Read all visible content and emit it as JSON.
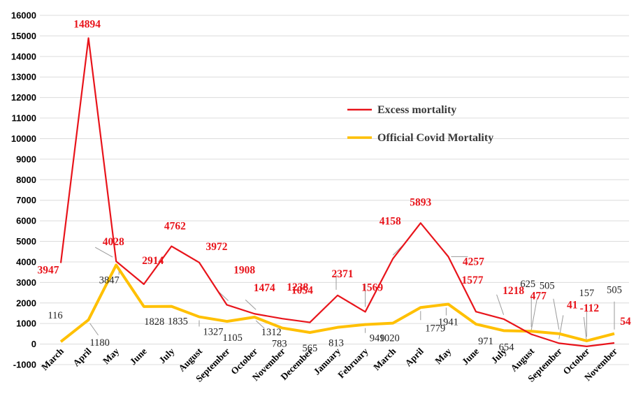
{
  "chart_data": {
    "type": "line",
    "categories": [
      "March",
      "April",
      "May",
      "June",
      "July",
      "August",
      "September",
      "October",
      "November",
      "December",
      "January",
      "February",
      "March",
      "April",
      "May",
      "June",
      "July",
      "August",
      "September",
      "October",
      "November"
    ],
    "series": [
      {
        "name": "Excess mortality",
        "color": "#e8141b",
        "values": [
          3947,
          14894,
          4028,
          2914,
          4762,
          3972,
          1908,
          1474,
          1238,
          1054,
          2371,
          1569,
          4158,
          5893,
          4257,
          1577,
          1218,
          477,
          41,
          -112,
          54
        ]
      },
      {
        "name": "Official Covid Mortality",
        "color": "#ffc000",
        "values": [
          116,
          1180,
          3847,
          1828,
          1835,
          1327,
          1105,
          1312,
          783,
          565,
          813,
          949,
          1020,
          1779,
          1941,
          971,
          654,
          625,
          505,
          157,
          505
        ]
      }
    ],
    "ylim": [
      -1000,
      16000
    ],
    "yticks": [
      "-1000",
      "0",
      "1000",
      "2000",
      "3000",
      "4000",
      "5000",
      "6000",
      "7000",
      "8000",
      "9000",
      "10000",
      "11000",
      "12000",
      "13000",
      "14000",
      "15000",
      "16000"
    ],
    "excess_labels": [
      "3947",
      "14894",
      "4028",
      "2914",
      "4762",
      "3972",
      "1908",
      "1474",
      "1238",
      "1054",
      "2371",
      "1569",
      "4158",
      "5893",
      "4257",
      "1577",
      "1218",
      "477",
      "41",
      "-112",
      "54"
    ],
    "official_labels": [
      "116",
      "1180",
      "3847",
      "1828",
      "1835",
      "1327",
      "1105",
      "1312",
      "783",
      "565",
      "813",
      "949",
      "1020",
      "1779",
      "1941",
      "971",
      "654",
      "625",
      "505",
      "157",
      "505"
    ],
    "grid": true,
    "legend_position": "center-right"
  }
}
